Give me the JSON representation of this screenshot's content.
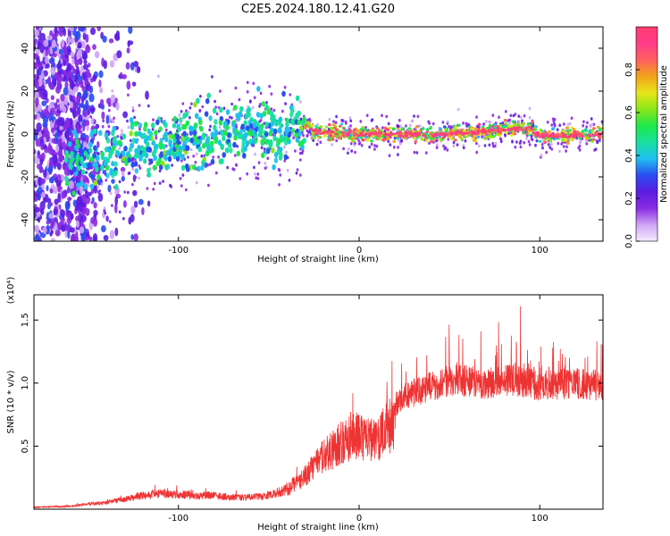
{
  "title": "C2E5.2024.180.12.41.G20",
  "chart_data": [
    {
      "type": "heatmap",
      "xlabel": "Height of straight line (km)",
      "ylabel": "Frequency (Hz)",
      "xlim": [
        -180,
        135
      ],
      "ylim": [
        -50,
        50
      ],
      "x_ticks": [
        -100,
        0,
        100
      ],
      "y_ticks": [
        -40,
        -20,
        0,
        20,
        40
      ],
      "colorbar": {
        "label": "Normalized spectral amplitude",
        "range": [
          0,
          1
        ],
        "ticks": [
          0.0,
          0.2,
          0.4,
          0.6,
          0.8
        ],
        "colormap": [
          "#f6ecff",
          "#cfa4f5",
          "#8a2be2",
          "#5a1de0",
          "#2a4df0",
          "#1fc0f0",
          "#19e0a0",
          "#1de84a",
          "#8ae61a",
          "#e8e61a",
          "#f2a21a",
          "#ff6060",
          "#ff3c8a",
          "#ff3c70"
        ]
      },
      "centerline_hz": [
        {
          "x": -160,
          "y": -13
        },
        {
          "x": -140,
          "y": -10
        },
        {
          "x": -120,
          "y": -6
        },
        {
          "x": -100,
          "y": -4
        },
        {
          "x": -80,
          "y": 0
        },
        {
          "x": -60,
          "y": 2
        },
        {
          "x": -40,
          "y": 0
        },
        {
          "x": -30,
          "y": 6
        },
        {
          "x": -25,
          "y": 1
        },
        {
          "x": 0,
          "y": 0
        },
        {
          "x": 50,
          "y": 0
        },
        {
          "x": 95,
          "y": 3
        },
        {
          "x": 100,
          "y": -1
        },
        {
          "x": 135,
          "y": 0
        }
      ]
    },
    {
      "type": "line",
      "xlabel": "Height of straight line (km)",
      "ylabel": "SNR (10 * v/v)",
      "y_multiplier": "(x10⁴)",
      "xlim": [
        -180,
        135
      ],
      "ylim": [
        0,
        1.7
      ],
      "x_ticks": [
        -100,
        0,
        100
      ],
      "y_ticks": [
        0.5,
        1.0,
        1.5
      ],
      "color": "#ee3333",
      "series": [
        {
          "values_envelope": [
            {
              "x": -180,
              "y": 0.02
            },
            {
              "x": -160,
              "y": 0.03
            },
            {
              "x": -150,
              "y": 0.05
            },
            {
              "x": -140,
              "y": 0.07
            },
            {
              "x": -130,
              "y": 0.1
            },
            {
              "x": -120,
              "y": 0.14
            },
            {
              "x": -110,
              "y": 0.16
            },
            {
              "x": -100,
              "y": 0.15
            },
            {
              "x": -90,
              "y": 0.14
            },
            {
              "x": -80,
              "y": 0.14
            },
            {
              "x": -70,
              "y": 0.12
            },
            {
              "x": -60,
              "y": 0.12
            },
            {
              "x": -50,
              "y": 0.14
            },
            {
              "x": -40,
              "y": 0.2
            },
            {
              "x": -30,
              "y": 0.35
            },
            {
              "x": -20,
              "y": 0.55
            },
            {
              "x": -10,
              "y": 0.7
            },
            {
              "x": 0,
              "y": 0.78
            },
            {
              "x": 10,
              "y": 0.7
            },
            {
              "x": 15,
              "y": 0.85
            },
            {
              "x": 25,
              "y": 1.0
            },
            {
              "x": 40,
              "y": 1.1
            },
            {
              "x": 55,
              "y": 1.15
            },
            {
              "x": 70,
              "y": 1.12
            },
            {
              "x": 85,
              "y": 1.15
            },
            {
              "x": 100,
              "y": 1.1
            },
            {
              "x": 120,
              "y": 1.12
            },
            {
              "x": 135,
              "y": 1.1
            }
          ]
        }
      ]
    }
  ]
}
